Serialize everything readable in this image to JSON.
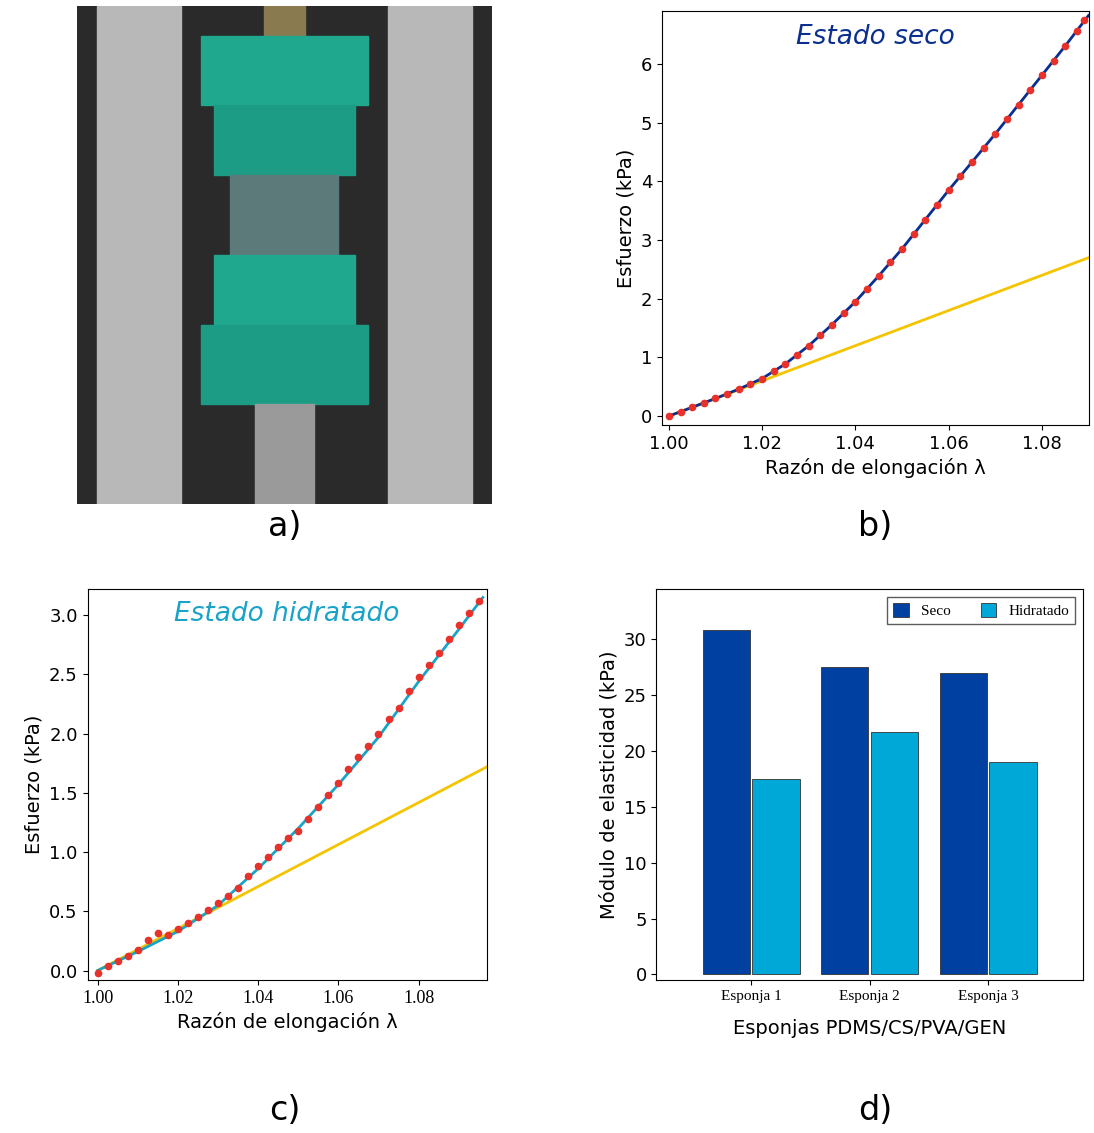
{
  "panel_labels": [
    "a)",
    "b)",
    "c)",
    "d)"
  ],
  "chart_data": [
    {
      "type": "line",
      "title": "Estado seco",
      "x_label": "Razón de elongación λ",
      "y_label": "Esfuerzo (kPa)",
      "xlim": [
        0.9985,
        1.09
      ],
      "ylim": [
        -0.15,
        6.9
      ],
      "xticks": [
        {
          "value": 1.0,
          "label": "1.00"
        },
        {
          "value": 1.02,
          "label": "1.02"
        },
        {
          "value": 1.04,
          "label": "1.04"
        },
        {
          "value": 1.06,
          "label": "1.06"
        },
        {
          "value": 1.08,
          "label": "1.08"
        }
      ],
      "yticks": [
        0,
        1,
        2,
        3,
        4,
        5,
        6
      ],
      "series": [
        {
          "type": "line",
          "color": "#f5c400",
          "line_style": "solid",
          "x": [
            1.0,
            1.09
          ],
          "values": [
            0.0,
            2.7
          ]
        },
        {
          "type": "scatter",
          "color": "#e8312a",
          "marker": "circle",
          "x": [
            1.0,
            1.0025,
            1.005,
            1.0075,
            1.01,
            1.0125,
            1.015,
            1.0175,
            1.02,
            1.0225,
            1.025,
            1.0275,
            1.03,
            1.0325,
            1.035,
            1.0375,
            1.04,
            1.0425,
            1.045,
            1.0475,
            1.05,
            1.0525,
            1.055,
            1.0575,
            1.06,
            1.0625,
            1.065,
            1.0675,
            1.07,
            1.0725,
            1.075,
            1.0775,
            1.08,
            1.0825,
            1.085,
            1.0875,
            1.089
          ],
          "values": [
            0.0,
            0.07,
            0.15,
            0.22,
            0.3,
            0.38,
            0.46,
            0.54,
            0.64,
            0.76,
            0.89,
            1.04,
            1.2,
            1.38,
            1.56,
            1.75,
            1.95,
            2.17,
            2.39,
            2.62,
            2.85,
            3.1,
            3.35,
            3.6,
            3.85,
            4.09,
            4.33,
            4.57,
            4.81,
            5.06,
            5.31,
            5.56,
            5.81,
            6.06,
            6.31,
            6.56,
            6.75
          ]
        },
        {
          "type": "line",
          "color": "#0a2f8f",
          "line_style": "solid",
          "x": [
            1.0,
            1.005,
            1.01,
            1.015,
            1.02,
            1.025,
            1.03,
            1.035,
            1.04,
            1.045,
            1.05,
            1.055,
            1.06,
            1.065,
            1.07,
            1.075,
            1.08,
            1.085,
            1.09
          ],
          "values": [
            0.0,
            0.15,
            0.3,
            0.46,
            0.64,
            0.89,
            1.2,
            1.56,
            1.95,
            2.39,
            2.85,
            3.35,
            3.85,
            4.33,
            4.81,
            5.31,
            5.81,
            6.31,
            6.83
          ]
        }
      ]
    },
    {
      "type": "line",
      "title": "Estado hidratado",
      "x_label": "Razón de elongación λ",
      "y_label": "Esfuerzo (kPa)",
      "xlim": [
        0.9975,
        1.097
      ],
      "ylim": [
        -0.08,
        3.22
      ],
      "xticks": [
        {
          "value": 1.0,
          "label": "1.00"
        },
        {
          "value": 1.02,
          "label": "1.02"
        },
        {
          "value": 1.04,
          "label": "1.04"
        },
        {
          "value": 1.06,
          "label": "1.06"
        },
        {
          "value": 1.08,
          "label": "1.08"
        }
      ],
      "yticks": [
        0.0,
        0.5,
        1.0,
        1.5,
        2.0,
        2.5,
        3.0
      ],
      "series": [
        {
          "type": "line",
          "color": "#f5c400",
          "line_style": "solid",
          "x": [
            1.0,
            1.097
          ],
          "values": [
            0.0,
            1.72
          ]
        },
        {
          "type": "scatter",
          "color": "#e8312a",
          "marker": "circle",
          "x": [
            1.0,
            1.0025,
            1.005,
            1.0075,
            1.01,
            1.0125,
            1.015,
            1.0175,
            1.02,
            1.0225,
            1.025,
            1.0275,
            1.03,
            1.0325,
            1.035,
            1.0375,
            1.04,
            1.0425,
            1.045,
            1.0475,
            1.05,
            1.0525,
            1.055,
            1.0575,
            1.06,
            1.0625,
            1.065,
            1.0675,
            1.07,
            1.0725,
            1.075,
            1.0775,
            1.08,
            1.0825,
            1.085,
            1.0875,
            1.09,
            1.0925,
            1.095
          ],
          "values": [
            -0.02,
            0.04,
            0.08,
            0.12,
            0.17,
            0.26,
            0.32,
            0.3,
            0.35,
            0.4,
            0.45,
            0.51,
            0.57,
            0.63,
            0.7,
            0.8,
            0.88,
            0.96,
            1.04,
            1.12,
            1.18,
            1.28,
            1.38,
            1.48,
            1.58,
            1.7,
            1.8,
            1.9,
            2.0,
            2.12,
            2.22,
            2.36,
            2.48,
            2.58,
            2.68,
            2.8,
            2.92,
            3.02,
            3.12
          ]
        },
        {
          "type": "line",
          "color": "#1aa3c8",
          "line_style": "solid",
          "x": [
            1.0,
            1.01,
            1.02,
            1.03,
            1.04,
            1.05,
            1.06,
            1.07,
            1.08,
            1.09,
            1.096
          ],
          "values": [
            0.0,
            0.16,
            0.33,
            0.55,
            0.86,
            1.2,
            1.57,
            1.97,
            2.44,
            2.88,
            3.15
          ]
        }
      ]
    },
    {
      "type": "bar",
      "x_label": "Esponjas PDMS/CS/PVA/GEN",
      "y_label": "Módulo de elasticidad (kPa)",
      "categories": [
        "Esponja 1",
        "Esponja 2",
        "Esponja 3"
      ],
      "ylim": [
        -0.5,
        34.5
      ],
      "yticks": [
        0,
        5,
        10,
        15,
        20,
        25,
        30
      ],
      "legend": "upper right",
      "series": [
        {
          "name": "Seco",
          "color": "#0040a0",
          "values": [
            30.8,
            27.5,
            27.0
          ]
        },
        {
          "name": "Hidratado",
          "color": "#00a8d8",
          "values": [
            17.5,
            21.7,
            19.0
          ]
        }
      ]
    }
  ]
}
